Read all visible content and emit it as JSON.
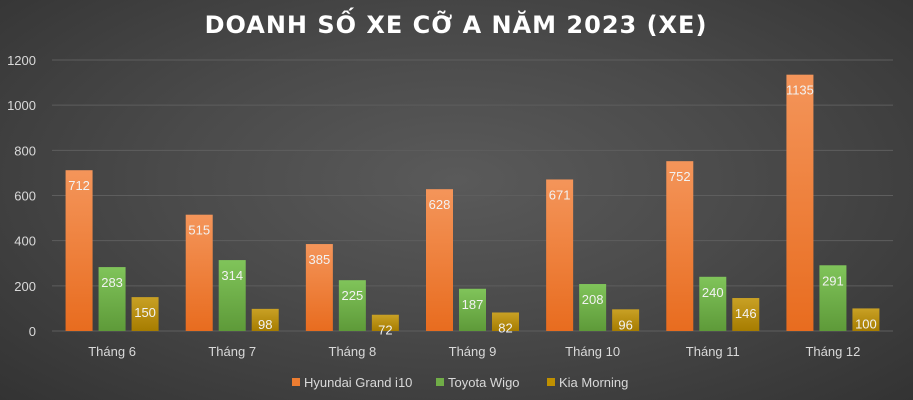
{
  "chart_data": {
    "type": "bar",
    "title": "DOANH SỐ XE CỠ A NĂM 2023 (XE)",
    "categories": [
      "Tháng 6",
      "Tháng 7",
      "Tháng 8",
      "Tháng 9",
      "Tháng 10",
      "Tháng 11",
      "Tháng 12"
    ],
    "series": [
      {
        "name": "Hyundai Grand i10",
        "color": "#ed7d31",
        "values": [
          712,
          515,
          385,
          628,
          671,
          752,
          1135
        ]
      },
      {
        "name": "Toyota Wigo",
        "color": "#70ad47",
        "values": [
          283,
          314,
          225,
          187,
          208,
          240,
          291
        ]
      },
      {
        "name": "Kia Morning",
        "color": "#bf9000",
        "values": [
          150,
          98,
          72,
          82,
          96,
          146,
          100
        ]
      }
    ],
    "ylim": [
      0,
      1200
    ],
    "yticks": [
      0,
      200,
      400,
      600,
      800,
      1000,
      1200
    ],
    "grid": true,
    "legend_position": "bottom"
  }
}
